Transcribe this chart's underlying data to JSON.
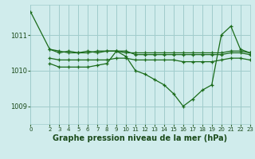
{
  "background_color": "#d0ecec",
  "grid_color": "#a0cccc",
  "line_color": "#1a6b1a",
  "xlabel": "Graphe pression niveau de la mer (hPa)",
  "xlabel_fontsize": 7,
  "xlim": [
    0,
    23
  ],
  "ylim": [
    1008.5,
    1011.85
  ],
  "yticks": [
    1009,
    1010,
    1011
  ],
  "xticks": [
    0,
    2,
    3,
    4,
    5,
    6,
    7,
    8,
    9,
    10,
    11,
    12,
    13,
    14,
    15,
    16,
    17,
    18,
    19,
    20,
    21,
    22,
    23
  ],
  "series": [
    {
      "x": [
        0,
        2,
        3,
        4,
        5,
        6,
        7,
        8,
        9,
        10,
        11,
        12,
        13,
        14,
        15,
        16,
        17,
        18,
        19,
        20,
        21,
        22,
        23
      ],
      "y": [
        1011.65,
        1010.6,
        1010.55,
        1010.5,
        1010.5,
        1010.5,
        1010.55,
        1010.55,
        1010.55,
        1010.5,
        1010.5,
        1010.5,
        1010.5,
        1010.5,
        1010.5,
        1010.5,
        1010.5,
        1010.5,
        1010.5,
        1010.5,
        1010.55,
        1010.55,
        1010.5
      ]
    },
    {
      "x": [
        2,
        3,
        4,
        5,
        6,
        7,
        8,
        9,
        10,
        11,
        12,
        13,
        14,
        15,
        16,
        17,
        18,
        19,
        20,
        21,
        22,
        23
      ],
      "y": [
        1010.6,
        1010.5,
        1010.55,
        1010.5,
        1010.55,
        1010.5,
        1010.55,
        1010.55,
        1010.55,
        1010.45,
        1010.45,
        1010.45,
        1010.45,
        1010.45,
        1010.45,
        1010.45,
        1010.45,
        1010.45,
        1010.45,
        1010.5,
        1010.5,
        1010.45
      ]
    },
    {
      "x": [
        2,
        3,
        4,
        5,
        6,
        7,
        8,
        9,
        10,
        11,
        12,
        13,
        14,
        15,
        16,
        17,
        18,
        19,
        20,
        21,
        22,
        23
      ],
      "y": [
        1010.35,
        1010.3,
        1010.3,
        1010.3,
        1010.3,
        1010.3,
        1010.3,
        1010.35,
        1010.35,
        1010.3,
        1010.3,
        1010.3,
        1010.3,
        1010.3,
        1010.25,
        1010.25,
        1010.25,
        1010.25,
        1010.3,
        1010.35,
        1010.35,
        1010.3
      ]
    },
    {
      "x": [
        2,
        3,
        4,
        5,
        6,
        7,
        8,
        9,
        10,
        11,
        12,
        13,
        14,
        15,
        16,
        17,
        18,
        19,
        20,
        21,
        22,
        23
      ],
      "y": [
        1010.2,
        1010.1,
        1010.1,
        1010.1,
        1010.1,
        1010.15,
        1010.2,
        1010.55,
        1010.4,
        1010.0,
        1009.9,
        1009.75,
        1009.6,
        1009.35,
        1009.0,
        1009.2,
        1009.45,
        1009.6,
        1011.0,
        1011.25,
        1010.6,
        1010.5
      ]
    }
  ]
}
